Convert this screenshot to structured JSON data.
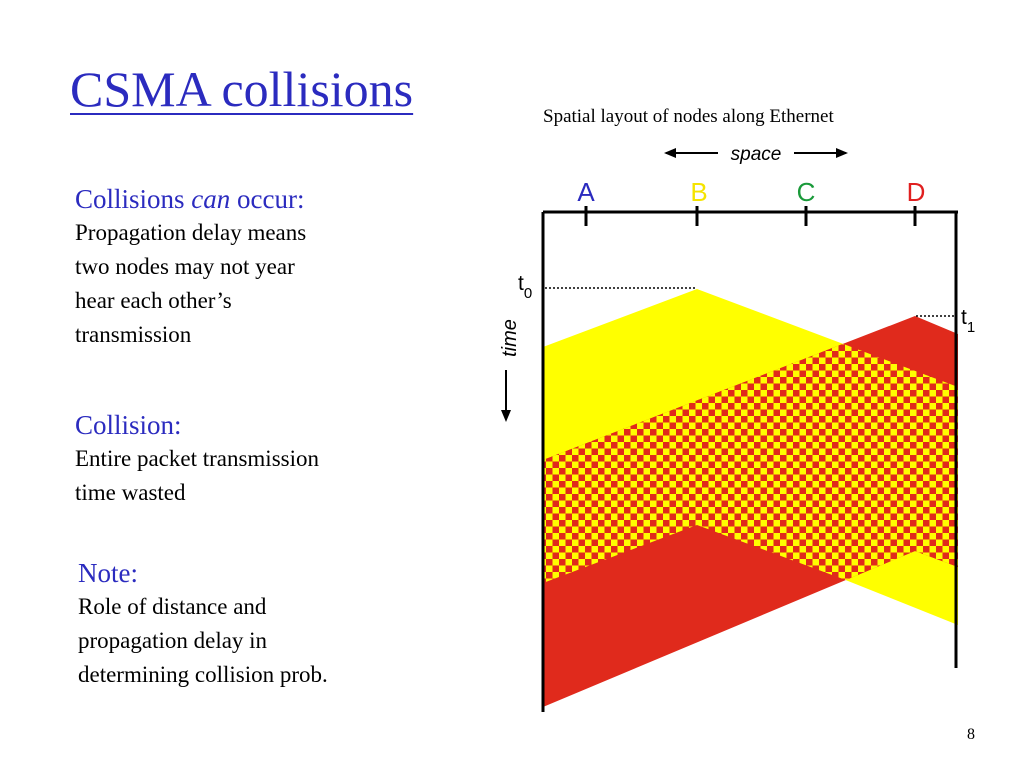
{
  "slide": {
    "title": "CSMA collisions",
    "page_number": "8"
  },
  "left": {
    "block1": {
      "heading_pre": "Collisions ",
      "heading_em": "can",
      "heading_post": " occur:",
      "lines": [
        "Propagation delay means",
        "two nodes may not year",
        "hear each other’s",
        "transmission"
      ]
    },
    "block2": {
      "heading": "Collision:",
      "lines": [
        "Entire packet transmission",
        "time wasted"
      ]
    },
    "block3": {
      "heading": "Note:",
      "lines": [
        "Role of distance and",
        "propagation delay in",
        "determining collision prob."
      ]
    }
  },
  "diagram": {
    "caption": "Spatial layout of nodes along Ethernet",
    "space_label": "space",
    "time_label": "time",
    "nodes": [
      {
        "label": "A",
        "color": "#2b2bbf"
      },
      {
        "label": "B",
        "color": "#f5e400"
      },
      {
        "label": "C",
        "color": "#1a9a3a"
      },
      {
        "label": "D",
        "color": "#e02020"
      }
    ],
    "t0": {
      "base": "t",
      "sub": "0"
    },
    "t1": {
      "base": "t",
      "sub": "1"
    },
    "colors": {
      "yellow": "#ffff00",
      "red": "#e02a1c",
      "line": "#000000"
    }
  }
}
